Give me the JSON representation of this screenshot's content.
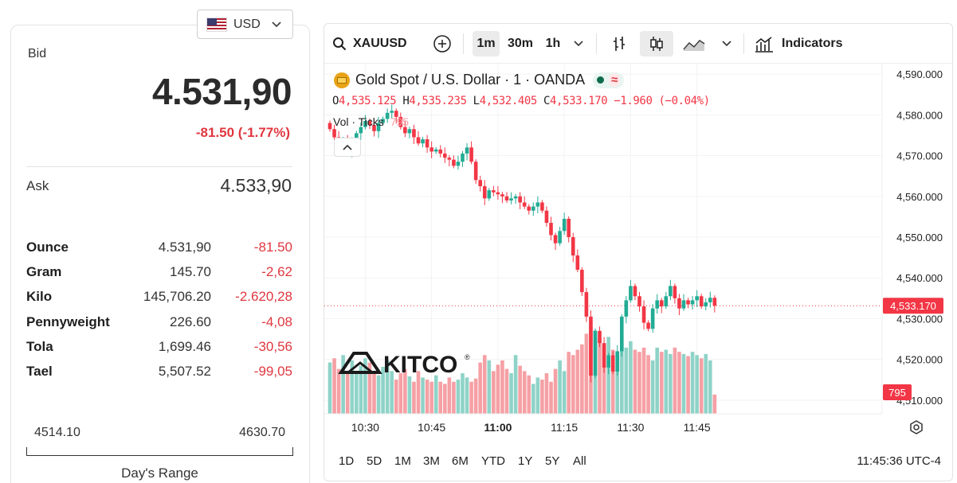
{
  "currency": {
    "code": "USD",
    "flag_icon": "us-flag-icon"
  },
  "quote": {
    "bid_label": "Bid",
    "bid": "4.531,90",
    "change": "-81.50 (-1.77%)",
    "ask_label": "Ask",
    "ask": "4.533,90"
  },
  "units": [
    {
      "name": "Ounce",
      "price": "4.531,90",
      "change": "-81.50"
    },
    {
      "name": "Gram",
      "price": "145.70",
      "change": "-2,62"
    },
    {
      "name": "Kilo",
      "price": "145,706.20",
      "change": "-2.620,28"
    },
    {
      "name": "Pennyweight",
      "price": "226.60",
      "change": "-4,08"
    },
    {
      "name": "Tola",
      "price": "1,699.46",
      "change": "-30,56"
    },
    {
      "name": "Tael",
      "price": "5,507.52",
      "change": "-99,05"
    }
  ],
  "days_range": {
    "low": "4514.10",
    "high": "4630.70",
    "label": "Day's Range"
  },
  "chart": {
    "toolbar": {
      "symbol": "XAUUSD",
      "intervals": [
        "1m",
        "30m",
        "1h"
      ],
      "active_interval": "1m",
      "indicators_label": "Indicators"
    },
    "legend": {
      "title": "Gold Spot / U.S. Dollar · 1 · OANDA",
      "o_label": "O",
      "o": "4,535.125",
      "h_label": "H",
      "h": "4,535.235",
      "l_label": "L",
      "l": "4,532.405",
      "c_label": "C",
      "c": "4,533.170",
      "chg": "−1.960 (−0.04%)",
      "vol_label": "Vol · Ticks",
      "vol": "795"
    },
    "watermark": "KITCO",
    "last_price_tag": "4,533.170",
    "last_volume_tag": "795",
    "time_zone_label": "11:45:36 UTC-4",
    "ranges": [
      "1D",
      "5D",
      "1M",
      "3M",
      "6M",
      "YTD",
      "1Y",
      "5Y",
      "All"
    ],
    "colors": {
      "up": "#22ab94",
      "down": "#f23645",
      "up_vol": "#8fd3c8",
      "down_vol": "#f5a0a5"
    }
  },
  "chart_data": {
    "type": "candlestick",
    "symbol": "XAUUSD",
    "interval": "1m",
    "x_ticks": [
      "10:30",
      "10:45",
      "11:00",
      "11:15",
      "11:30",
      "11:45"
    ],
    "y_ticks": [
      "4,590.000",
      "4,580.000",
      "4,570.000",
      "4,560.000",
      "4,550.000",
      "4,540.000",
      "4,530.000",
      "4,520.000",
      "4,510.000"
    ],
    "ylim": [
      4509.0,
      4591.0
    ],
    "start_time": "10:22",
    "path": [
      4576.5,
      4574.5,
      4572.0,
      4574.0,
      4570.5,
      4573.0,
      4575.5,
      4577.0,
      4578.5,
      4577.5,
      4576.0,
      4578.0,
      4579.0,
      4580.5,
      4581.0,
      4579.5,
      4577.0,
      4575.5,
      4576.5,
      4574.5,
      4573.0,
      4574.0,
      4572.0,
      4571.0,
      4571.5,
      4570.5,
      4569.5,
      4569.0,
      4567.5,
      4568.5,
      4570.5,
      4572.0,
      4568.5,
      4564.0,
      4562.5,
      4559.5,
      4561.5,
      4561.0,
      4560.5,
      4560.0,
      4559.0,
      4559.5,
      4560.0,
      4558.5,
      4557.5,
      4556.5,
      4557.5,
      4558.5,
      4556.5,
      4553.5,
      4550.5,
      4548.5,
      4551.5,
      4554.5,
      4550.0,
      4545.5,
      4542.0,
      4536.5,
      4530.5,
      4516.0,
      4527.0,
      4524.0,
      4518.0,
      4521.0,
      4517.0,
      4522.0,
      4530.5,
      4534.5,
      4538.0,
      4535.5,
      4533.0,
      4529.0,
      4527.5,
      4532.5,
      4534.5,
      4533.0,
      4535.5,
      4538.0,
      4535.0,
      4532.5,
      4534.5,
      4533.5,
      4534.5,
      4535.5,
      4533.0,
      4534.0,
      4535.125,
      4533.17
    ],
    "volume": [
      48,
      52,
      42,
      55,
      40,
      50,
      38,
      45,
      52,
      48,
      40,
      36,
      44,
      50,
      40,
      32,
      38,
      42,
      35,
      30,
      40,
      34,
      32,
      30,
      36,
      30,
      28,
      34,
      30,
      32,
      38,
      34,
      30,
      33,
      48,
      55,
      50,
      40,
      46,
      50,
      42,
      38,
      55,
      45,
      40,
      36,
      28,
      34,
      32,
      38,
      30,
      42,
      50,
      40,
      58,
      55,
      60,
      65,
      75,
      82,
      78,
      70,
      64,
      72,
      60,
      58,
      70,
      62,
      68,
      60,
      58,
      62,
      55,
      50,
      62,
      58,
      60,
      56,
      62,
      58,
      56,
      54,
      58,
      55,
      52,
      56,
      50,
      18
    ],
    "last_price": 4533.17
  }
}
